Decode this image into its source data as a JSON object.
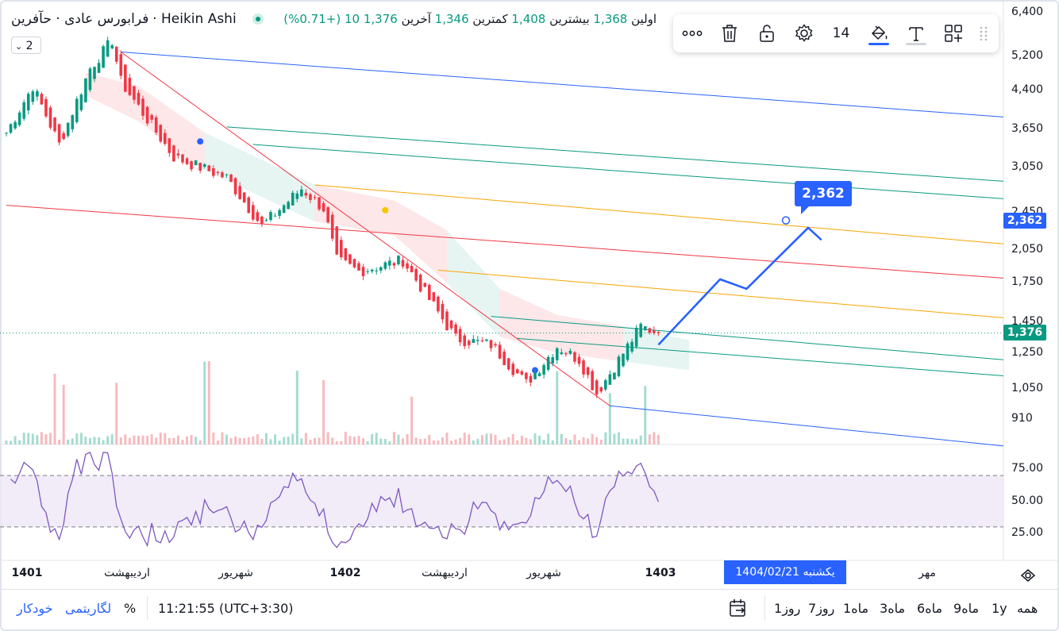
{
  "legend": {
    "symbol_title": "فرابورس عادی · حآفرین",
    "chart_style": "Heikin Ashi",
    "open_label": "اولین",
    "open_value": "1,368",
    "high_label": "بیشترین",
    "high_value": "1,408",
    "low_label": "کمترین",
    "low_value": "1,346",
    "close_label": "آخرین",
    "close_value": "1,376",
    "change": "10 (+0.71%)",
    "sub_toggle": "2"
  },
  "toolbar": {
    "more_icon": "more-horizontal-icon",
    "delete_icon": "trash-icon",
    "lock_icon": "unlock-icon",
    "settings_icon": "gear-icon",
    "line_width": "14",
    "color_icon": "paint-bucket-icon",
    "color": "#2962ff",
    "text_icon": "text-icon",
    "template_icon": "add-template-icon",
    "drag_icon": "drag-handle-icon"
  },
  "chart_data": {
    "type": "candlestick",
    "price_axis": {
      "scale": "log",
      "ticks": [
        "6,400",
        "5,200",
        "4,400",
        "3,650",
        "3,050",
        "2,450",
        "2,050",
        "1,750",
        "1,450",
        "1,250",
        "1,050",
        "910"
      ]
    },
    "rsi_axis": {
      "ticks": [
        "75.00",
        "50.00",
        "25.00"
      ],
      "upper_band": 70,
      "lower_band": 30
    },
    "time_axis": {
      "labels": [
        {
          "text": "1401",
          "bold": true
        },
        {
          "text": "اردیبهشت",
          "bold": false
        },
        {
          "text": "شهریور",
          "bold": false
        },
        {
          "text": "1402",
          "bold": true
        },
        {
          "text": "اردیبهشت",
          "bold": false
        },
        {
          "text": "شهریور",
          "bold": false
        },
        {
          "text": "1403",
          "bold": true
        },
        {
          "text": "مهر",
          "bold": false
        }
      ],
      "crosshair_date": "یکشنبه  1404/02/21"
    },
    "last_price": "1,376",
    "target_price": "2,362",
    "target_bubble": "2,362",
    "anchors_close": [
      [
        0,
        3600
      ],
      [
        6,
        4500
      ],
      [
        12,
        3400
      ],
      [
        19,
        4900
      ],
      [
        24,
        5600
      ],
      [
        26,
        4600
      ],
      [
        38,
        3200
      ],
      [
        50,
        2900
      ],
      [
        58,
        2300
      ],
      [
        67,
        2750
      ],
      [
        72,
        2500
      ],
      [
        75,
        1950
      ],
      [
        80,
        1850
      ],
      [
        90,
        1950
      ],
      [
        102,
        1340
      ],
      [
        110,
        1300
      ],
      [
        118,
        1080
      ],
      [
        125,
        1290
      ],
      [
        130,
        1210
      ],
      [
        134,
        1030
      ],
      [
        144,
        1420
      ],
      [
        148,
        1376
      ]
    ],
    "lines": [
      {
        "name": "pitchfork-median",
        "color": "#f23645",
        "from": [
          0,
          2540
        ],
        "to": [
          1264,
          1790
        ]
      },
      {
        "name": "trend-diagonal",
        "color": "#f23645",
        "from": [
          26,
          5300
        ],
        "to": [
          137,
          970
        ]
      },
      {
        "name": "upper-blue",
        "color": "#2962ff",
        "from": [
          26,
          5300
        ],
        "to": [
          1264,
          3880
        ]
      },
      {
        "name": "lower-blue",
        "color": "#2962ff",
        "from": [
          137,
          970
        ],
        "to": [
          1264,
          800
        ]
      },
      {
        "name": "green-1",
        "color": "#089981",
        "from": [
          50,
          3700
        ],
        "to": [
          1264,
          2850
        ]
      },
      {
        "name": "green-2",
        "color": "#089981",
        "from": [
          56,
          3400
        ],
        "to": [
          1264,
          2620
        ]
      },
      {
        "name": "orange-1",
        "color": "#f7a600",
        "from": [
          70,
          2800
        ],
        "to": [
          1264,
          2110
        ]
      },
      {
        "name": "orange-2",
        "color": "#f7a600",
        "from": [
          98,
          1860
        ],
        "to": [
          1264,
          1480
        ]
      },
      {
        "name": "green-3",
        "color": "#089981",
        "from": [
          110,
          1490
        ],
        "to": [
          1264,
          1210
        ]
      },
      {
        "name": "green-4",
        "color": "#089981",
        "from": [
          116,
          1340
        ],
        "to": [
          1264,
          1120
        ]
      }
    ],
    "projection": [
      [
        148,
        1300
      ],
      [
        162,
        1780
      ],
      [
        168,
        1700
      ],
      [
        182,
        2280
      ],
      [
        185,
        2150
      ]
    ],
    "markers": [
      {
        "type": "blue-dot",
        "at": [
          44,
          3450
        ]
      },
      {
        "type": "yellow-dot",
        "at": [
          86,
          2480
        ]
      },
      {
        "type": "blue-dot",
        "at": [
          120,
          1150
        ]
      }
    ]
  },
  "bottom_bar": {
    "ranges": [
      "همه",
      "1y",
      "9ماه",
      "6ماه",
      "3ماه",
      "1ماه",
      "7روز",
      "1روز"
    ],
    "calendar_icon": "calendar-goto-icon",
    "clock": "11:21:55 (UTC+3:30)",
    "percent": "%",
    "log": "لگاریتمی",
    "auto": "خودکار"
  },
  "colors": {
    "up": "#089981",
    "down": "#f23645",
    "rsi": "#7e57c2",
    "rsi_band": "#ede7f6",
    "accent": "#2962ff"
  }
}
